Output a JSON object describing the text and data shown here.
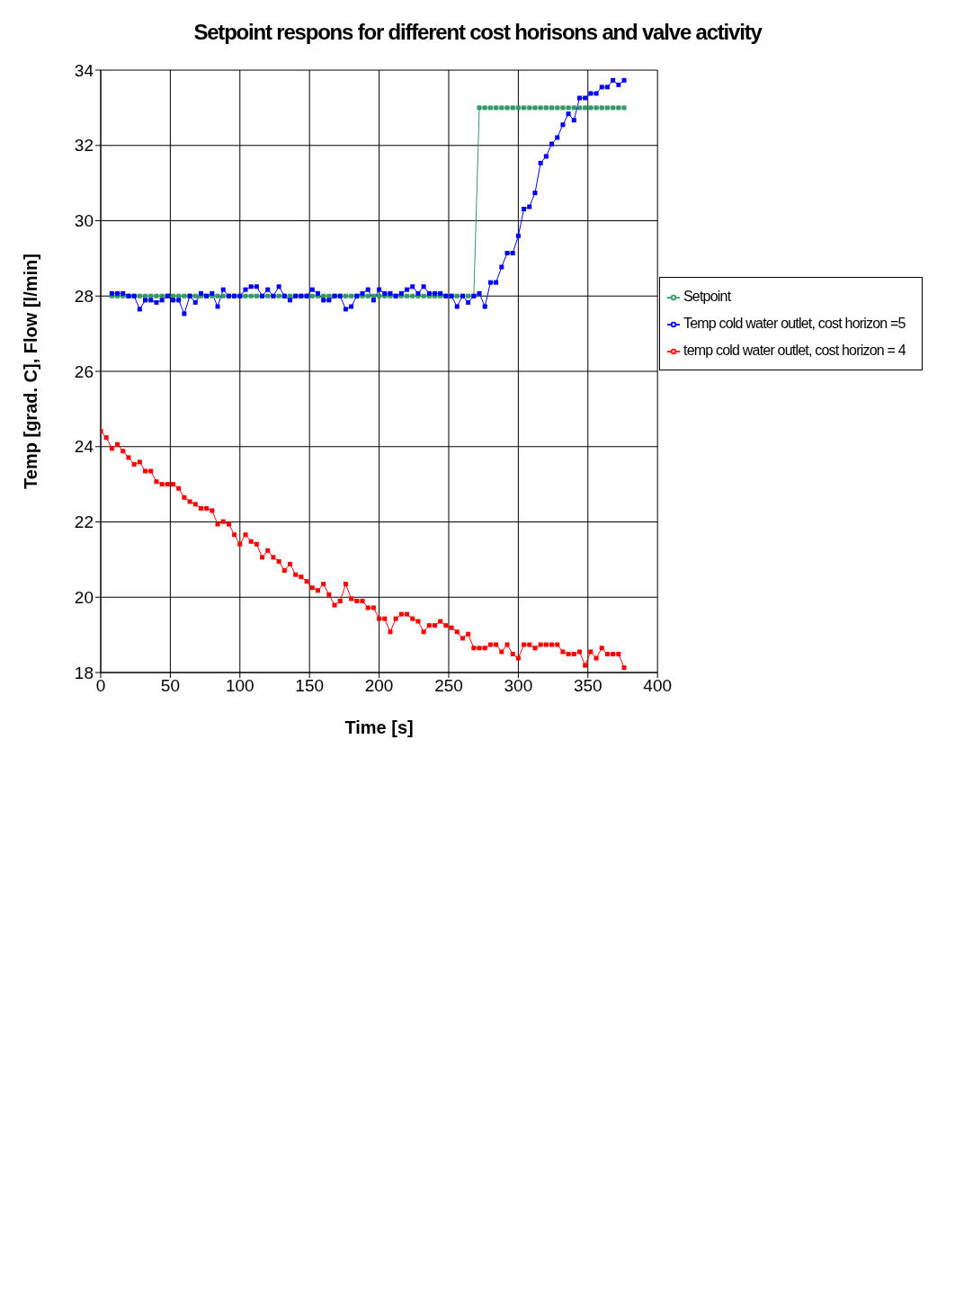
{
  "chart_data": {
    "type": "line",
    "title": "Setpoint respons for different cost horisons and valve activity",
    "xlabel": "Time [s]",
    "ylabel": "Temp [grad. C], Flow [l/min]",
    "xlim": [
      0,
      400
    ],
    "xticks": [
      0,
      50,
      100,
      150,
      200,
      250,
      300,
      350,
      400
    ],
    "ylim": [
      18,
      34
    ],
    "yticks": [
      18,
      20,
      22,
      24,
      26,
      28,
      30,
      32,
      34
    ],
    "grid": true,
    "legend": "right",
    "marker": "square",
    "line_style": "solid",
    "series": [
      {
        "name": "temp cold water outlet, cost horizon = 4",
        "color": "#ff0000",
        "x": [
          0,
          4,
          8,
          12,
          16,
          20,
          24,
          28,
          32,
          36,
          40,
          44,
          48,
          52,
          56,
          60,
          64,
          68,
          72,
          76,
          80,
          84,
          88,
          92,
          96,
          100,
          104,
          108,
          112,
          116,
          120,
          124,
          128,
          132,
          136,
          140,
          144,
          148,
          152,
          156,
          160,
          164,
          168,
          172,
          176,
          180,
          184,
          188,
          192,
          196,
          200,
          204,
          208,
          212,
          216,
          220,
          224,
          228,
          232,
          236,
          240,
          244,
          248,
          252,
          256,
          260,
          264,
          268,
          272,
          276,
          280,
          284,
          288,
          292,
          296,
          300,
          304,
          308,
          312,
          316,
          320,
          324,
          328,
          332,
          336,
          340,
          344,
          348,
          352,
          356,
          360,
          364,
          368,
          372,
          376
        ],
        "values": [
          24.41,
          24.24,
          23.95,
          24.06,
          23.88,
          23.71,
          23.53,
          23.59,
          23.35,
          23.35,
          23.07,
          23.0,
          23.0,
          23.0,
          22.89,
          22.65,
          22.54,
          22.47,
          22.36,
          22.36,
          22.3,
          21.94,
          22.01,
          21.94,
          21.66,
          21.41,
          21.66,
          21.48,
          21.41,
          21.06,
          21.24,
          21.06,
          20.95,
          20.71,
          20.88,
          20.6,
          20.54,
          20.42,
          20.25,
          20.18,
          20.35,
          20.07,
          19.79,
          19.9,
          20.35,
          19.96,
          19.9,
          19.9,
          19.72,
          19.72,
          19.43,
          19.43,
          19.08,
          19.43,
          19.55,
          19.55,
          19.43,
          19.36,
          19.08,
          19.25,
          19.25,
          19.36,
          19.25,
          19.19,
          19.08,
          18.91,
          19.02,
          18.65,
          18.65,
          18.65,
          18.74,
          18.74,
          18.55,
          18.74,
          18.49,
          18.38,
          18.74,
          18.74,
          18.65,
          18.74,
          18.74,
          18.74,
          18.74,
          18.55,
          18.49,
          18.49,
          18.55,
          18.19,
          18.55,
          18.38,
          18.65,
          18.49,
          18.49,
          18.49,
          18.13
        ]
      },
      {
        "name": "Setpoint",
        "color": "#339966",
        "x": [
          8,
          12,
          16,
          20,
          24,
          28,
          32,
          36,
          40,
          44,
          48,
          52,
          56,
          60,
          64,
          68,
          72,
          76,
          80,
          84,
          88,
          92,
          96,
          100,
          104,
          108,
          112,
          116,
          120,
          124,
          128,
          132,
          136,
          140,
          144,
          148,
          152,
          156,
          160,
          164,
          168,
          172,
          176,
          180,
          184,
          188,
          192,
          196,
          200,
          204,
          208,
          212,
          216,
          220,
          224,
          228,
          232,
          236,
          240,
          244,
          248,
          252,
          256,
          260,
          264,
          268,
          272,
          276,
          280,
          284,
          288,
          292,
          296,
          300,
          304,
          308,
          312,
          316,
          320,
          324,
          328,
          332,
          336,
          340,
          344,
          348,
          352,
          356,
          360,
          364,
          368,
          372,
          376
        ],
        "values": [
          28,
          28,
          28,
          28,
          28,
          28,
          28,
          28,
          28,
          28,
          28,
          28,
          28,
          28,
          28,
          28,
          28,
          28,
          28,
          28,
          28,
          28,
          28,
          28,
          28,
          28,
          28,
          28,
          28,
          28,
          28,
          28,
          28,
          28,
          28,
          28,
          28,
          28,
          28,
          28,
          28,
          28,
          28,
          28,
          28,
          28,
          28,
          28,
          28,
          28,
          28,
          28,
          28,
          28,
          28,
          28,
          28,
          28,
          28,
          28,
          28,
          28,
          28,
          28,
          28,
          28,
          33,
          33,
          33,
          33,
          33,
          33,
          33,
          33,
          33,
          33,
          33,
          33,
          33,
          33,
          33,
          33,
          33,
          33,
          33,
          33,
          33,
          33,
          33,
          33,
          33,
          33,
          33
        ]
      },
      {
        "name": "Temp cold water outlet,  cost horizon =5",
        "color": "#0000ff",
        "x": [
          8,
          12,
          16,
          20,
          24,
          28,
          32,
          36,
          40,
          44,
          48,
          52,
          56,
          60,
          64,
          68,
          72,
          76,
          80,
          84,
          88,
          92,
          96,
          100,
          104,
          108,
          112,
          116,
          120,
          124,
          128,
          132,
          136,
          140,
          144,
          148,
          152,
          156,
          160,
          164,
          168,
          172,
          176,
          180,
          184,
          188,
          192,
          196,
          200,
          204,
          208,
          212,
          216,
          220,
          224,
          228,
          232,
          236,
          240,
          244,
          248,
          252,
          256,
          260,
          264,
          268,
          272,
          276,
          280,
          284,
          288,
          292,
          296,
          300,
          304,
          308,
          312,
          316,
          320,
          324,
          328,
          332,
          336,
          340,
          344,
          348,
          352,
          356,
          360,
          364,
          368,
          372,
          376
        ],
        "values": [
          28.07,
          28.07,
          28.07,
          28.0,
          28.0,
          27.65,
          27.89,
          27.89,
          27.83,
          27.89,
          28.0,
          27.89,
          27.89,
          27.53,
          28.0,
          27.83,
          28.07,
          28.0,
          28.07,
          27.72,
          28.17,
          28.0,
          28.0,
          28.0,
          28.17,
          28.25,
          28.25,
          28.0,
          28.17,
          28.0,
          28.25,
          28.0,
          27.89,
          28.0,
          28.0,
          28.0,
          28.17,
          28.07,
          27.89,
          27.89,
          28.0,
          28.0,
          27.65,
          27.72,
          28.0,
          28.07,
          28.17,
          27.89,
          28.17,
          28.07,
          28.07,
          28.0,
          28.07,
          28.17,
          28.25,
          28.07,
          28.25,
          28.07,
          28.07,
          28.07,
          28.0,
          28.0,
          27.72,
          28.0,
          27.83,
          28.0,
          28.07,
          27.72,
          28.36,
          28.36,
          28.77,
          29.14,
          29.14,
          29.6,
          30.31,
          30.37,
          30.74,
          31.53,
          31.71,
          32.04,
          32.21,
          32.55,
          32.84,
          32.67,
          33.26,
          33.26,
          33.38,
          33.38,
          33.55,
          33.55,
          33.73,
          33.61,
          33.73
        ]
      }
    ]
  }
}
